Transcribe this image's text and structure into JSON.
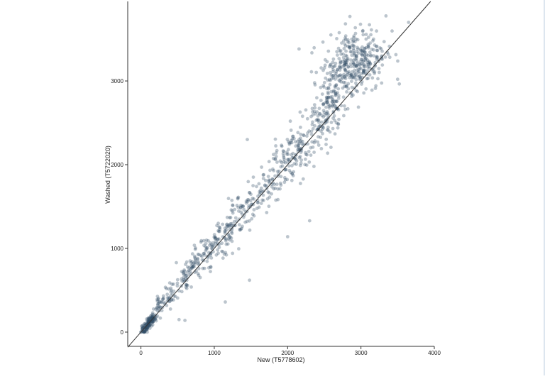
{
  "chart_data": {
    "type": "scatter",
    "xlabel": "New (T5778602)",
    "ylabel": "Washed (T5722020)",
    "x_ticks": [
      0,
      1000,
      2000,
      3000,
      4000
    ],
    "y_ticks": [
      0,
      1000,
      2000,
      3000
    ],
    "x_tick_labels": [
      "0",
      "1000",
      "2000",
      "3000",
      "4000"
    ],
    "y_tick_labels": [
      "0",
      "1000",
      "2000",
      "3000"
    ],
    "xlim": [
      -180,
      4000
    ],
    "ylim": [
      -170,
      3950
    ],
    "grid": false,
    "reference_line": {
      "from": [
        -180,
        -180
      ],
      "to": [
        3950,
        3950
      ]
    },
    "point_color": "#2f4a63",
    "point_opacity": 0.32,
    "line_color": "#333333",
    "points_summary": "approximately 1100 points clustered around the y = x line, denser near the origin and near (2900, 3200)"
  }
}
